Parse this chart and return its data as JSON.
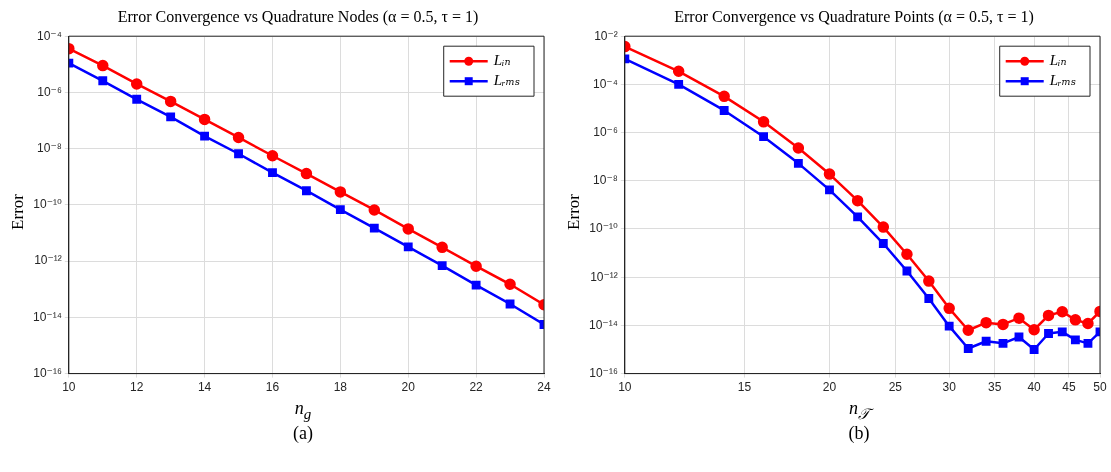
{
  "chart_data": [
    {
      "type": "line",
      "title": "Error Convergence vs Quadrature Nodes (α = 0.5, τ = 1)",
      "xlabel": "n$_{g}$",
      "ylabel": "Error",
      "annotations": [
        "(a)"
      ],
      "x": [
        10,
        11,
        12,
        13,
        14,
        15,
        16,
        17,
        18,
        19,
        20,
        21,
        22,
        23,
        24
      ],
      "series": [
        {
          "name": "Lᵢₙ",
          "color": "#ff0000",
          "marker": "circle",
          "values": [
            3.6e-05,
            9e-06,
            2e-06,
            4.8e-07,
            1.1e-07,
            2.5e-08,
            5.6e-09,
            1.3e-09,
            2.9e-10,
            6.6e-11,
            1.4e-11,
            3.1e-12,
            6.6e-13,
            1.5e-13,
            2.8e-14
          ]
        },
        {
          "name": "Lᵣₘₛ",
          "color": "#0000ff",
          "marker": "square",
          "values": [
            1.1e-05,
            2.6e-06,
            5.7e-07,
            1.35e-07,
            2.8e-08,
            6.6e-09,
            1.4e-09,
            3.2e-10,
            6.8e-11,
            1.5e-11,
            3.2e-12,
            6.9e-13,
            1.4e-13,
            3e-14,
            5.6e-15
          ]
        }
      ],
      "log": "y",
      "xlim": [
        10,
        24
      ],
      "xticks": [
        10,
        12,
        14,
        16,
        18,
        20,
        22,
        24
      ],
      "ylim": [
        1e-16,
        0.0001
      ],
      "yticks": [
        {
          "value": 1e-16,
          "label": "10⁻¹⁶"
        },
        {
          "value": 1e-14,
          "label": "10⁻¹⁴"
        },
        {
          "value": 1e-12,
          "label": "10⁻¹²"
        },
        {
          "value": 1e-10,
          "label": "10⁻¹⁰"
        },
        {
          "value": 1e-08,
          "label": "10⁻⁸"
        },
        {
          "value": 1e-06,
          "label": "10⁻⁶"
        },
        {
          "value": 0.0001,
          "label": "10⁻⁴"
        }
      ],
      "grid": true,
      "legend": "top right",
      "line_style": "solid"
    },
    {
      "type": "line",
      "title": "Error Convergence vs Quadrature Points (α = 0.5, τ = 1)",
      "xlabel": "n$_{𝒯}$",
      "ylabel": "Error",
      "annotations": [
        "(b)"
      ],
      "x": [
        10,
        12,
        14,
        16,
        18,
        20,
        22,
        24,
        26,
        28,
        30,
        32,
        34,
        36,
        38,
        40,
        42,
        44,
        46,
        48,
        50
      ],
      "series": [
        {
          "name": "Lᵢₙ",
          "color": "#ff0000",
          "marker": "circle",
          "values": [
            0.0037,
            0.00035,
            3.2e-05,
            2.8e-06,
            2.3e-07,
            1.9e-08,
            1.5e-09,
            1.2e-10,
            9e-12,
            6.9e-13,
            5.1e-14,
            6.3e-15,
            1.3e-14,
            1.1e-14,
            2e-14,
            6.6e-15,
            2.6e-14,
            3.7e-14,
            1.7e-14,
            1.2e-14,
            3.8e-14
          ]
        },
        {
          "name": "Lᵣₘₛ",
          "color": "#0000ff",
          "marker": "square",
          "values": [
            0.00115,
            0.0001,
            8.3e-06,
            6.8e-07,
            5.3e-08,
            4.2e-09,
            3.2e-10,
            2.5e-11,
            1.8e-12,
            1.3e-13,
            9.3e-15,
            1.1e-15,
            2.2e-15,
            1.8e-15,
            3.3e-15,
            1e-15,
            4.6e-15,
            5.4e-15,
            2.5e-15,
            1.8e-15,
            5.4e-15
          ]
        }
      ],
      "log": "xy",
      "xlim": [
        10,
        50
      ],
      "xticks": [
        10,
        15,
        20,
        25,
        30,
        35,
        40,
        45,
        50
      ],
      "ylim": [
        1e-16,
        0.01
      ],
      "yticks": [
        {
          "value": 1e-16,
          "label": "10⁻¹⁶"
        },
        {
          "value": 1e-14,
          "label": "10⁻¹⁴"
        },
        {
          "value": 1e-12,
          "label": "10⁻¹²"
        },
        {
          "value": 1e-10,
          "label": "10⁻¹⁰"
        },
        {
          "value": 1e-08,
          "label": "10⁻⁸"
        },
        {
          "value": 1e-06,
          "label": "10⁻⁶"
        },
        {
          "value": 0.0001,
          "label": "10⁻⁴"
        },
        {
          "value": 0.01,
          "label": "10⁻²"
        }
      ],
      "grid": true,
      "legend": "top right",
      "line_style": "solid"
    }
  ]
}
